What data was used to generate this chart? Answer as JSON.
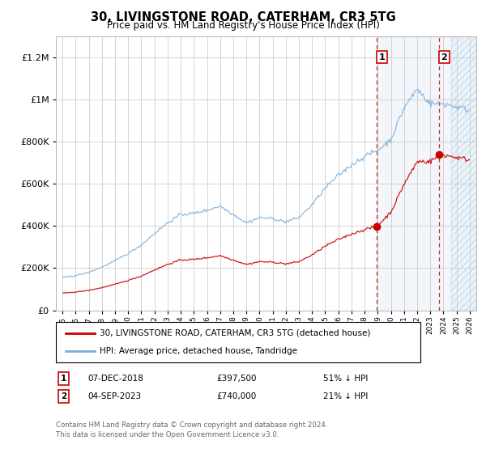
{
  "title": "30, LIVINGSTONE ROAD, CATERHAM, CR3 5TG",
  "subtitle": "Price paid vs. HM Land Registry's House Price Index (HPI)",
  "hpi_label": "HPI: Average price, detached house, Tandridge",
  "property_label": "30, LIVINGSTONE ROAD, CATERHAM, CR3 5TG (detached house)",
  "annotation1": {
    "num": "1",
    "date": "07-DEC-2018",
    "price": "£397,500",
    "pct": "51% ↓ HPI",
    "year": 2018.92,
    "value": 397500
  },
  "annotation2": {
    "num": "2",
    "date": "04-SEP-2023",
    "price": "£740,000",
    "pct": "21% ↓ HPI",
    "year": 2023.67,
    "value": 740000
  },
  "hpi_color": "#7aaedc",
  "property_color": "#cc0000",
  "background_color": "#ffffff",
  "grid_color": "#cccccc",
  "ylim": [
    0,
    1300000
  ],
  "xlim_start": 1994.5,
  "xlim_end": 2026.5,
  "footer": "Contains HM Land Registry data © Crown copyright and database right 2024.\nThis data is licensed under the Open Government Licence v3.0.",
  "hatch_region_start": 2024.58,
  "shade_region_start": 2018.92,
  "shade_region_end": 2024.58
}
